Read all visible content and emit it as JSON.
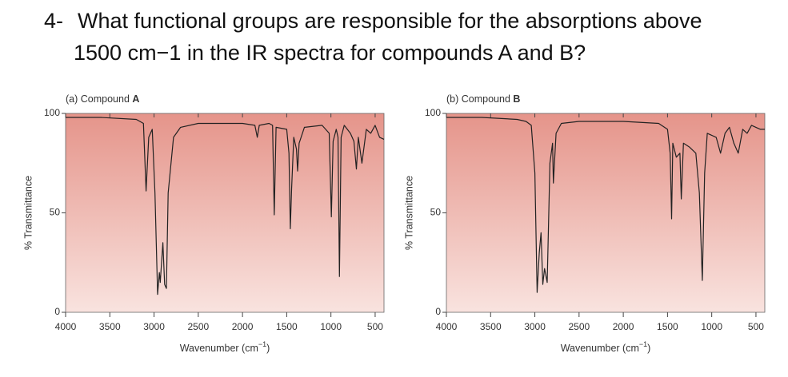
{
  "question": {
    "number": "4-",
    "lines": [
      "What functional groups are responsible for the absorptions above",
      "1500 cm−1 in the IR spectra for compounds A and B?"
    ]
  },
  "chart_data": [
    {
      "type": "line",
      "label": "(a) Compound",
      "compound": "A",
      "ylabel": "% Transmittance",
      "xlabel": "Wavenumber (cm",
      "xlabel_sup": "−1",
      "xlabel_end": ")",
      "xlim": [
        4000,
        400
      ],
      "xticks": [
        4000,
        3500,
        3000,
        2500,
        2000,
        1500,
        1000,
        500
      ],
      "ylim": [
        0,
        100
      ],
      "yticks": [
        0,
        50,
        100
      ],
      "color": "#222222",
      "series": [
        {
          "name": "Compound A",
          "x": [
            4000,
            3600,
            3200,
            3120,
            3090,
            3060,
            3020,
            2990,
            2960,
            2940,
            2930,
            2900,
            2880,
            2860,
            2840,
            2780,
            2700,
            2500,
            2000,
            1860,
            1833,
            1810,
            1700,
            1660,
            1641,
            1620,
            1500,
            1475,
            1459,
            1445,
            1420,
            1390,
            1377,
            1360,
            1300,
            1100,
            1020,
            995,
            975,
            940,
            920,
            904,
            885,
            850,
            780,
            740,
            712,
            690,
            650,
            600,
            550,
            500,
            450,
            400
          ],
          "values": [
            98,
            98,
            97,
            95,
            61,
            88,
            92,
            60,
            9,
            20,
            15,
            35,
            14,
            12,
            60,
            88,
            93,
            95,
            95,
            94,
            88,
            94,
            95,
            94,
            49,
            93,
            92,
            80,
            42,
            62,
            88,
            82,
            71,
            85,
            93,
            94,
            90,
            48,
            86,
            92,
            88,
            18,
            88,
            94,
            90,
            86,
            72,
            88,
            75,
            92,
            90,
            94,
            88,
            87
          ]
        }
      ]
    },
    {
      "type": "line",
      "label": "(b) Compound",
      "compound": "B",
      "ylabel": "% Transmittance",
      "xlabel": "Wavenumber (cm",
      "xlabel_sup": "−1",
      "xlabel_end": ")",
      "xlim": [
        4000,
        400
      ],
      "xticks": [
        4000,
        3500,
        3000,
        2500,
        2000,
        1500,
        1000,
        500
      ],
      "ylim": [
        0,
        100
      ],
      "yticks": [
        0,
        50,
        100
      ],
      "color": "#222222",
      "series": [
        {
          "name": "Compound B",
          "x": [
            4000,
            3600,
            3200,
            3100,
            3040,
            3000,
            2974,
            2950,
            2930,
            2910,
            2890,
            2860,
            2830,
            2800,
            2791,
            2760,
            2700,
            2500,
            2000,
            1600,
            1500,
            1470,
            1454,
            1440,
            1400,
            1360,
            1344,
            1320,
            1250,
            1180,
            1140,
            1106,
            1080,
            1050,
            950,
            900,
            850,
            800,
            750,
            700,
            650,
            600,
            550,
            500,
            450,
            400
          ],
          "values": [
            98,
            98,
            97,
            96,
            94,
            70,
            10,
            30,
            40,
            14,
            22,
            15,
            75,
            85,
            65,
            90,
            95,
            96,
            96,
            95,
            92,
            80,
            47,
            85,
            78,
            80,
            57,
            85,
            83,
            80,
            60,
            16,
            70,
            90,
            88,
            80,
            90,
            93,
            85,
            80,
            92,
            90,
            94,
            93,
            92,
            92
          ]
        }
      ]
    }
  ]
}
